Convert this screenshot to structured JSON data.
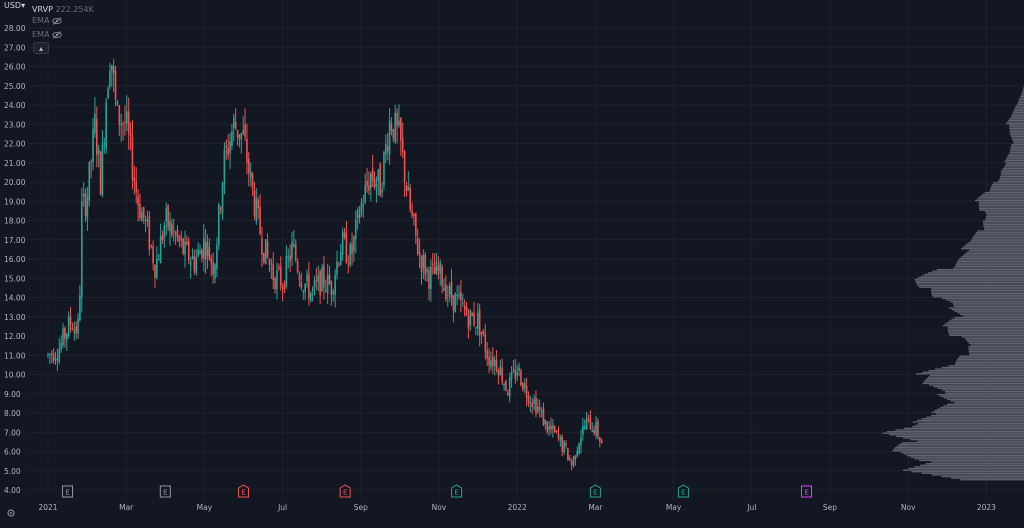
{
  "header": {
    "currency": "USD",
    "currency_caret": "▾",
    "indicator_vrvp": "VRVP",
    "vrvp_value": "222.254K",
    "indicator_ema1": "EMA",
    "indicator_ema2": "EMA",
    "collapse_arrow": "▴"
  },
  "colors": {
    "background": "#131722",
    "up": "#26a69a",
    "down": "#ef5350",
    "volume_profile": "#6d717c",
    "grid": "#1e222d",
    "earnings_past": "#9598a1",
    "earnings_neg": "#ef5350",
    "earnings_pos": "#26a69a",
    "earnings_future": "#e040fb"
  },
  "chart_data": {
    "type": "candlestick",
    "ylim": [
      4.0,
      28.4
    ],
    "y_ticks": [
      "28.00",
      "27.00",
      "26.00",
      "25.00",
      "24.00",
      "23.00",
      "22.00",
      "21.00",
      "20.00",
      "19.00",
      "18.00",
      "17.00",
      "16.00",
      "15.00",
      "14.00",
      "13.00",
      "12.00",
      "11.00",
      "10.00",
      "9.00",
      "8.00",
      "7.00",
      "6.00",
      "5.00",
      "4.00"
    ],
    "x_ticks": [
      {
        "label": "2021",
        "month": 0
      },
      {
        "label": "Mar",
        "month": 2
      },
      {
        "label": "May",
        "month": 4
      },
      {
        "label": "Jul",
        "month": 6
      },
      {
        "label": "Sep",
        "month": 8
      },
      {
        "label": "Nov",
        "month": 10
      },
      {
        "label": "2022",
        "month": 12
      },
      {
        "label": "Mar",
        "month": 14
      },
      {
        "label": "May",
        "month": 16
      },
      {
        "label": "Jul",
        "month": 18
      },
      {
        "label": "Sep",
        "month": 20
      },
      {
        "label": "Nov",
        "month": 22
      },
      {
        "label": "2023",
        "month": 24
      }
    ],
    "price_path": [
      [
        0.0,
        11.0
      ],
      [
        0.3,
        11.4
      ],
      [
        0.5,
        12.4
      ],
      [
        0.6,
        12.8
      ],
      [
        0.7,
        12.3
      ],
      [
        0.8,
        12.6
      ],
      [
        0.85,
        18.5
      ],
      [
        1.0,
        19.2
      ],
      [
        1.2,
        23.0
      ],
      [
        1.35,
        20.0
      ],
      [
        1.5,
        24.8
      ],
      [
        1.6,
        27.0
      ],
      [
        1.75,
        23.5
      ],
      [
        2.0,
        23.0
      ],
      [
        2.3,
        19.0
      ],
      [
        2.5,
        17.8
      ],
      [
        2.75,
        15.6
      ],
      [
        3.0,
        18.0
      ],
      [
        3.25,
        17.2
      ],
      [
        3.5,
        16.3
      ],
      [
        3.75,
        15.9
      ],
      [
        4.0,
        16.9
      ],
      [
        4.25,
        15.6
      ],
      [
        4.5,
        21.0
      ],
      [
        4.75,
        23.0
      ],
      [
        5.0,
        22.3
      ],
      [
        5.25,
        19.2
      ],
      [
        5.5,
        16.7
      ],
      [
        5.75,
        15.2
      ],
      [
        6.0,
        14.8
      ],
      [
        6.25,
        16.6
      ],
      [
        6.5,
        14.9
      ],
      [
        6.75,
        14.2
      ],
      [
        7.0,
        14.9
      ],
      [
        7.25,
        14.6
      ],
      [
        7.5,
        16.8
      ],
      [
        7.75,
        16.1
      ],
      [
        8.0,
        18.7
      ],
      [
        8.25,
        20.4
      ],
      [
        8.5,
        19.8
      ],
      [
        8.75,
        23.3
      ],
      [
        9.0,
        22.2
      ],
      [
        9.25,
        18.6
      ],
      [
        9.5,
        16.2
      ],
      [
        9.75,
        15.1
      ],
      [
        10.0,
        15.3
      ],
      [
        10.25,
        14.2
      ],
      [
        10.5,
        13.7
      ],
      [
        10.75,
        13.0
      ],
      [
        11.0,
        12.8
      ],
      [
        11.25,
        11.0
      ],
      [
        11.5,
        10.6
      ],
      [
        11.75,
        9.2
      ],
      [
        12.0,
        10.3
      ],
      [
        12.25,
        9.1
      ],
      [
        12.5,
        8.4
      ],
      [
        12.75,
        7.3
      ],
      [
        13.0,
        6.8
      ],
      [
        13.25,
        6.0
      ],
      [
        13.4,
        5.3
      ],
      [
        13.6,
        6.8
      ],
      [
        13.8,
        7.6
      ],
      [
        14.0,
        7.2
      ],
      [
        14.2,
        6.3
      ]
    ],
    "earnings_markers": [
      {
        "label": "E",
        "month": 0.5,
        "kind": "past"
      },
      {
        "label": "E",
        "month": 3.0,
        "kind": "past"
      },
      {
        "label": "E",
        "month": 5.0,
        "kind": "neg"
      },
      {
        "label": "E",
        "month": 7.6,
        "kind": "neg"
      },
      {
        "label": "E",
        "month": 10.45,
        "kind": "pos"
      },
      {
        "label": "E",
        "month": 14.0,
        "kind": "pos"
      },
      {
        "label": "E",
        "month": 16.25,
        "kind": "pos"
      },
      {
        "label": "E",
        "month": 19.4,
        "kind": "future"
      }
    ],
    "volume_profile": [
      [
        4.5,
        0.5
      ],
      [
        5.0,
        0.85
      ],
      [
        5.5,
        0.7
      ],
      [
        6.0,
        0.9
      ],
      [
        6.5,
        0.8
      ],
      [
        7.0,
        1.0
      ],
      [
        7.5,
        0.75
      ],
      [
        8.0,
        0.62
      ],
      [
        8.5,
        0.5
      ],
      [
        9.0,
        0.6
      ],
      [
        9.5,
        0.7
      ],
      [
        10.0,
        0.72
      ],
      [
        10.5,
        0.48
      ],
      [
        11.0,
        0.42
      ],
      [
        11.5,
        0.38
      ],
      [
        12.0,
        0.5
      ],
      [
        12.5,
        0.55
      ],
      [
        13.0,
        0.45
      ],
      [
        13.5,
        0.52
      ],
      [
        14.0,
        0.62
      ],
      [
        14.5,
        0.7
      ],
      [
        15.0,
        0.75
      ],
      [
        15.5,
        0.55
      ],
      [
        16.0,
        0.45
      ],
      [
        16.5,
        0.42
      ],
      [
        17.0,
        0.36
      ],
      [
        17.5,
        0.3
      ],
      [
        18.0,
        0.28
      ],
      [
        18.5,
        0.3
      ],
      [
        19.0,
        0.33
      ],
      [
        19.5,
        0.25
      ],
      [
        20.0,
        0.2
      ],
      [
        20.5,
        0.16
      ],
      [
        21.0,
        0.13
      ],
      [
        21.5,
        0.1
      ],
      [
        22.0,
        0.08
      ],
      [
        22.5,
        0.1
      ],
      [
        23.0,
        0.12
      ],
      [
        23.5,
        0.08
      ],
      [
        24.0,
        0.05
      ],
      [
        24.5,
        0.02
      ],
      [
        25.0,
        0.0
      ]
    ]
  }
}
